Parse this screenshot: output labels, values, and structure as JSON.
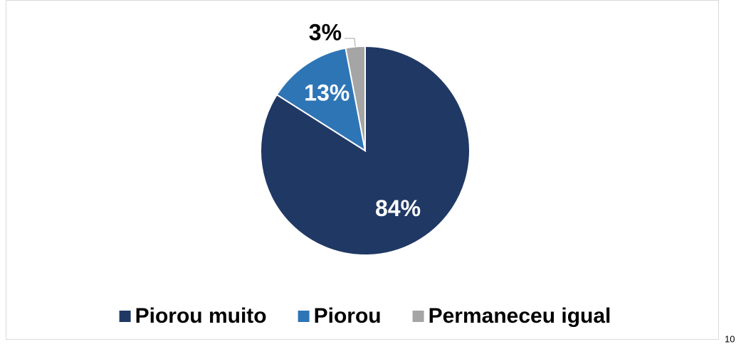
{
  "chart_data": {
    "type": "pie",
    "categories": [
      "Piorou muito",
      "Piorou",
      "Permaneceu igual"
    ],
    "values": [
      84,
      13,
      3
    ],
    "value_labels": [
      "84%",
      "13%",
      "3%"
    ],
    "colors": [
      "#203864",
      "#2e75b6",
      "#a5a5a5"
    ],
    "legend": "bottom"
  },
  "page_number": "10"
}
